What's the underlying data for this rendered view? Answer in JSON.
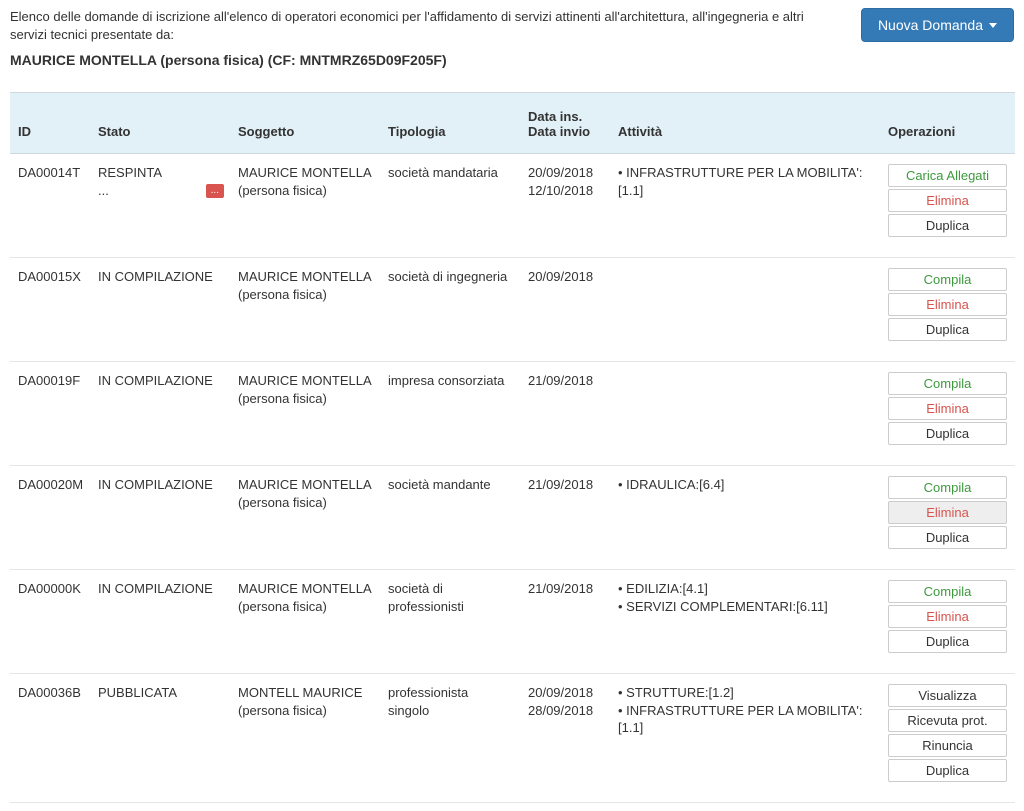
{
  "header": {
    "intro": "Elenco delle domande di iscrizione all'elenco di operatori economici per l'affidamento di servizi attinenti all'architettura, all'ingegneria e altri servizi tecnici presentate da:",
    "subject": "MAURICE MONTELLA (persona fisica) (CF: MNTMRZ65D09F205F)",
    "new_button": "Nuova Domanda"
  },
  "columns": {
    "id": "ID",
    "stato": "Stato",
    "soggetto": "Soggetto",
    "tipologia": "Tipologia",
    "date_line1": "Data ins.",
    "date_line2": "Data invio",
    "attivita": "Attività",
    "operazioni": "Operazioni"
  },
  "rows": [
    {
      "id": "DA00014T",
      "stato": "RESPINTA",
      "stato_extra": "...",
      "badge": "...",
      "soggetto_line1": "MAURICE MONTELLA",
      "soggetto_line2": "(persona fisica)",
      "tipologia": "società mandataria",
      "date_line1": "20/09/2018",
      "date_line2": "12/10/2018",
      "attivita": [
        "• INFRASTRUTTURE PER LA MOBILITA':[1.1]"
      ],
      "ops": [
        {
          "label": "Carica Allegati",
          "cls": "green"
        },
        {
          "label": "Elimina",
          "cls": "red"
        },
        {
          "label": "Duplica",
          "cls": ""
        }
      ]
    },
    {
      "id": "DA00015X",
      "stato": "IN COMPILAZIONE",
      "soggetto_line1": "MAURICE MONTELLA",
      "soggetto_line2": "(persona fisica)",
      "tipologia": "società di ingegneria",
      "date_line1": "20/09/2018",
      "date_line2": "",
      "attivita": [],
      "ops": [
        {
          "label": "Compila",
          "cls": "green"
        },
        {
          "label": "Elimina",
          "cls": "red"
        },
        {
          "label": "Duplica",
          "cls": ""
        }
      ]
    },
    {
      "id": "DA00019F",
      "stato": "IN COMPILAZIONE",
      "soggetto_line1": "MAURICE MONTELLA",
      "soggetto_line2": "(persona fisica)",
      "tipologia": "impresa consorziata",
      "date_line1": "21/09/2018",
      "date_line2": "",
      "attivita": [],
      "ops": [
        {
          "label": "Compila",
          "cls": "green"
        },
        {
          "label": "Elimina",
          "cls": "red"
        },
        {
          "label": "Duplica",
          "cls": ""
        }
      ]
    },
    {
      "id": "DA00020M",
      "stato": "IN COMPILAZIONE",
      "soggetto_line1": "MAURICE MONTELLA",
      "soggetto_line2": "(persona fisica)",
      "tipologia": "società mandante",
      "date_line1": "21/09/2018",
      "date_line2": "",
      "attivita": [
        "• IDRAULICA:[6.4]"
      ],
      "ops": [
        {
          "label": "Compila",
          "cls": "green"
        },
        {
          "label": "Elimina",
          "cls": "red muted"
        },
        {
          "label": "Duplica",
          "cls": ""
        }
      ]
    },
    {
      "id": "DA00000K",
      "stato": "IN COMPILAZIONE",
      "soggetto_line1": "MAURICE MONTELLA",
      "soggetto_line2": "(persona fisica)",
      "tipologia": "società di professionisti",
      "date_line1": "21/09/2018",
      "date_line2": "",
      "attivita": [
        "• EDILIZIA:[4.1]",
        "• SERVIZI COMPLEMENTARI:[6.11]"
      ],
      "ops": [
        {
          "label": "Compila",
          "cls": "green"
        },
        {
          "label": "Elimina",
          "cls": "red"
        },
        {
          "label": "Duplica",
          "cls": ""
        }
      ]
    },
    {
      "id": "DA00036B",
      "stato": "PUBBLICATA",
      "soggetto_line1": "MONTELL MAURICE",
      "soggetto_line2": "(persona fisica)",
      "tipologia": "professionista singolo",
      "date_line1": "20/09/2018",
      "date_line2": "28/09/2018",
      "attivita": [
        "• STRUTTURE:[1.2]",
        "• INFRASTRUTTURE PER LA MOBILITA':[1.1]"
      ],
      "ops": [
        {
          "label": "Visualizza",
          "cls": ""
        },
        {
          "label": "Ricevuta prot.",
          "cls": ""
        },
        {
          "label": "Rinuncia",
          "cls": ""
        },
        {
          "label": "Duplica",
          "cls": ""
        }
      ]
    }
  ]
}
